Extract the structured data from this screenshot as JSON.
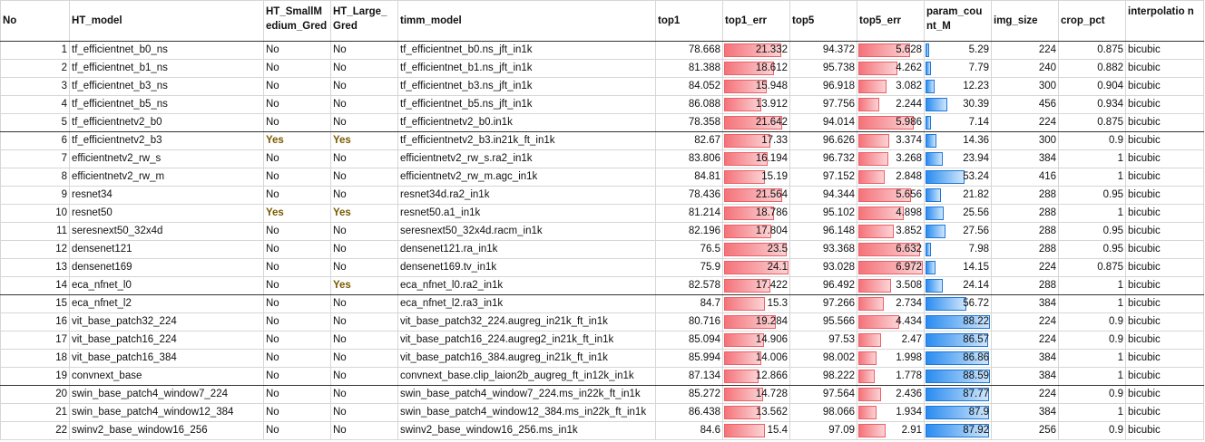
{
  "headers": [
    "No",
    "HT_model",
    "HT_SmallMedium_Gred",
    "HT_Large_Gred",
    "timm_model",
    "top1",
    "top1_err",
    "top5",
    "top5_err",
    "param_count_M",
    "img_size",
    "crop_pct",
    "interpolation"
  ],
  "header_display": [
    "No",
    "HT_model",
    "HT_SmallM edium_Gred",
    "HT_Large_ Gred",
    "timm_model",
    "top1",
    "top1_err",
    "top5",
    "top5_err",
    "param_cou nt_M",
    "img_size",
    "crop_pct",
    "interpolatio n"
  ],
  "colors": {
    "err_bar": "#f4737a",
    "param_bar": "#2a8cf0",
    "yes_text": "#7a5a00"
  },
  "rows": [
    [
      "1",
      "tf_efficientnet_b0_ns",
      "No",
      "No",
      "tf_efficientnet_b0.ns_jft_in1k",
      "78.668",
      "21.332",
      "94.372",
      "5.628",
      "5.29",
      "224",
      "0.875",
      "bicubic"
    ],
    [
      "2",
      "tf_efficientnet_b1_ns",
      "No",
      "No",
      "tf_efficientnet_b1.ns_jft_in1k",
      "81.388",
      "18.612",
      "95.738",
      "4.262",
      "7.79",
      "240",
      "0.882",
      "bicubic"
    ],
    [
      "3",
      "tf_efficientnet_b3_ns",
      "No",
      "No",
      "tf_efficientnet_b3.ns_jft_in1k",
      "84.052",
      "15.948",
      "96.918",
      "3.082",
      "12.23",
      "300",
      "0.904",
      "bicubic"
    ],
    [
      "4",
      "tf_efficientnet_b5_ns",
      "No",
      "No",
      "tf_efficientnet_b5.ns_jft_in1k",
      "86.088",
      "13.912",
      "97.756",
      "2.244",
      "30.39",
      "456",
      "0.934",
      "bicubic"
    ],
    [
      "5",
      "tf_efficientnetv2_b0",
      "No",
      "No",
      "tf_efficientnetv2_b0.in1k",
      "78.358",
      "21.642",
      "94.014",
      "5.986",
      "7.14",
      "224",
      "0.875",
      "bicubic"
    ],
    [
      "6",
      "tf_efficientnetv2_b3",
      "Yes",
      "Yes",
      "tf_efficientnetv2_b3.in21k_ft_in1k",
      "82.67",
      "17.33",
      "96.626",
      "3.374",
      "14.36",
      "300",
      "0.9",
      "bicubic"
    ],
    [
      "7",
      "efficientnetv2_rw_s",
      "No",
      "No",
      "efficientnetv2_rw_s.ra2_in1k",
      "83.806",
      "16.194",
      "96.732",
      "3.268",
      "23.94",
      "384",
      "1",
      "bicubic"
    ],
    [
      "8",
      "efficientnetv2_rw_m",
      "No",
      "No",
      "efficientnetv2_rw_m.agc_in1k",
      "84.81",
      "15.19",
      "97.152",
      "2.848",
      "53.24",
      "416",
      "1",
      "bicubic"
    ],
    [
      "9",
      "resnet34",
      "No",
      "No",
      "resnet34d.ra2_in1k",
      "78.436",
      "21.564",
      "94.344",
      "5.656",
      "21.82",
      "288",
      "0.95",
      "bicubic"
    ],
    [
      "10",
      "resnet50",
      "Yes",
      "Yes",
      "resnet50.a1_in1k",
      "81.214",
      "18.786",
      "95.102",
      "4.898",
      "25.56",
      "288",
      "1",
      "bicubic"
    ],
    [
      "11",
      "seresnext50_32x4d",
      "No",
      "No",
      "seresnext50_32x4d.racm_in1k",
      "82.196",
      "17.804",
      "96.148",
      "3.852",
      "27.56",
      "288",
      "0.95",
      "bicubic"
    ],
    [
      "12",
      "densenet121",
      "No",
      "No",
      "densenet121.ra_in1k",
      "76.5",
      "23.5",
      "93.368",
      "6.632",
      "7.98",
      "288",
      "0.95",
      "bicubic"
    ],
    [
      "13",
      "densenet169",
      "No",
      "No",
      "densenet169.tv_in1k",
      "75.9",
      "24.1",
      "93.028",
      "6.972",
      "14.15",
      "224",
      "0.875",
      "bicubic"
    ],
    [
      "14",
      "eca_nfnet_l0",
      "No",
      "Yes",
      "eca_nfnet_l0.ra2_in1k",
      "82.578",
      "17.422",
      "96.492",
      "3.508",
      "24.14",
      "288",
      "1",
      "bicubic"
    ],
    [
      "15",
      "eca_nfnet_l2",
      "No",
      "No",
      "eca_nfnet_l2.ra3_in1k",
      "84.7",
      "15.3",
      "97.266",
      "2.734",
      "56.72",
      "384",
      "1",
      "bicubic"
    ],
    [
      "16",
      "vit_base_patch32_224",
      "No",
      "No",
      "vit_base_patch32_224.augreg_in21k_ft_in1k",
      "80.716",
      "19.284",
      "95.566",
      "4.434",
      "88.22",
      "224",
      "0.9",
      "bicubic"
    ],
    [
      "17",
      "vit_base_patch16_224",
      "No",
      "No",
      "vit_base_patch16_224.augreg2_in21k_ft_in1k",
      "85.094",
      "14.906",
      "97.53",
      "2.47",
      "86.57",
      "224",
      "0.9",
      "bicubic"
    ],
    [
      "18",
      "vit_base_patch16_384",
      "No",
      "No",
      "vit_base_patch16_384.augreg_in21k_ft_in1k",
      "85.994",
      "14.006",
      "98.002",
      "1.998",
      "86.86",
      "384",
      "1",
      "bicubic"
    ],
    [
      "19",
      "convnext_base",
      "No",
      "No",
      "convnext_base.clip_laion2b_augreg_ft_in12k_in1k",
      "87.134",
      "12.866",
      "98.222",
      "1.778",
      "88.59",
      "384",
      "1",
      "bicubic"
    ],
    [
      "20",
      "swin_base_patch4_window7_224",
      "No",
      "No",
      "swin_base_patch4_window7_224.ms_in22k_ft_in1k",
      "85.272",
      "14.728",
      "97.564",
      "2.436",
      "87.77",
      "224",
      "0.9",
      "bicubic"
    ],
    [
      "21",
      "swin_base_patch4_window12_384",
      "No",
      "No",
      "swin_base_patch4_window12_384.ms_in22k_ft_in1k",
      "86.438",
      "13.562",
      "98.066",
      "1.934",
      "87.9",
      "384",
      "1",
      "bicubic"
    ],
    [
      "22",
      "swinv2_base_window16_256",
      "No",
      "No",
      "swinv2_base_window16_256.ms_in1k",
      "84.6",
      "15.4",
      "97.09",
      "2.91",
      "87.92",
      "256",
      "0.9",
      "bicubic"
    ]
  ]
}
